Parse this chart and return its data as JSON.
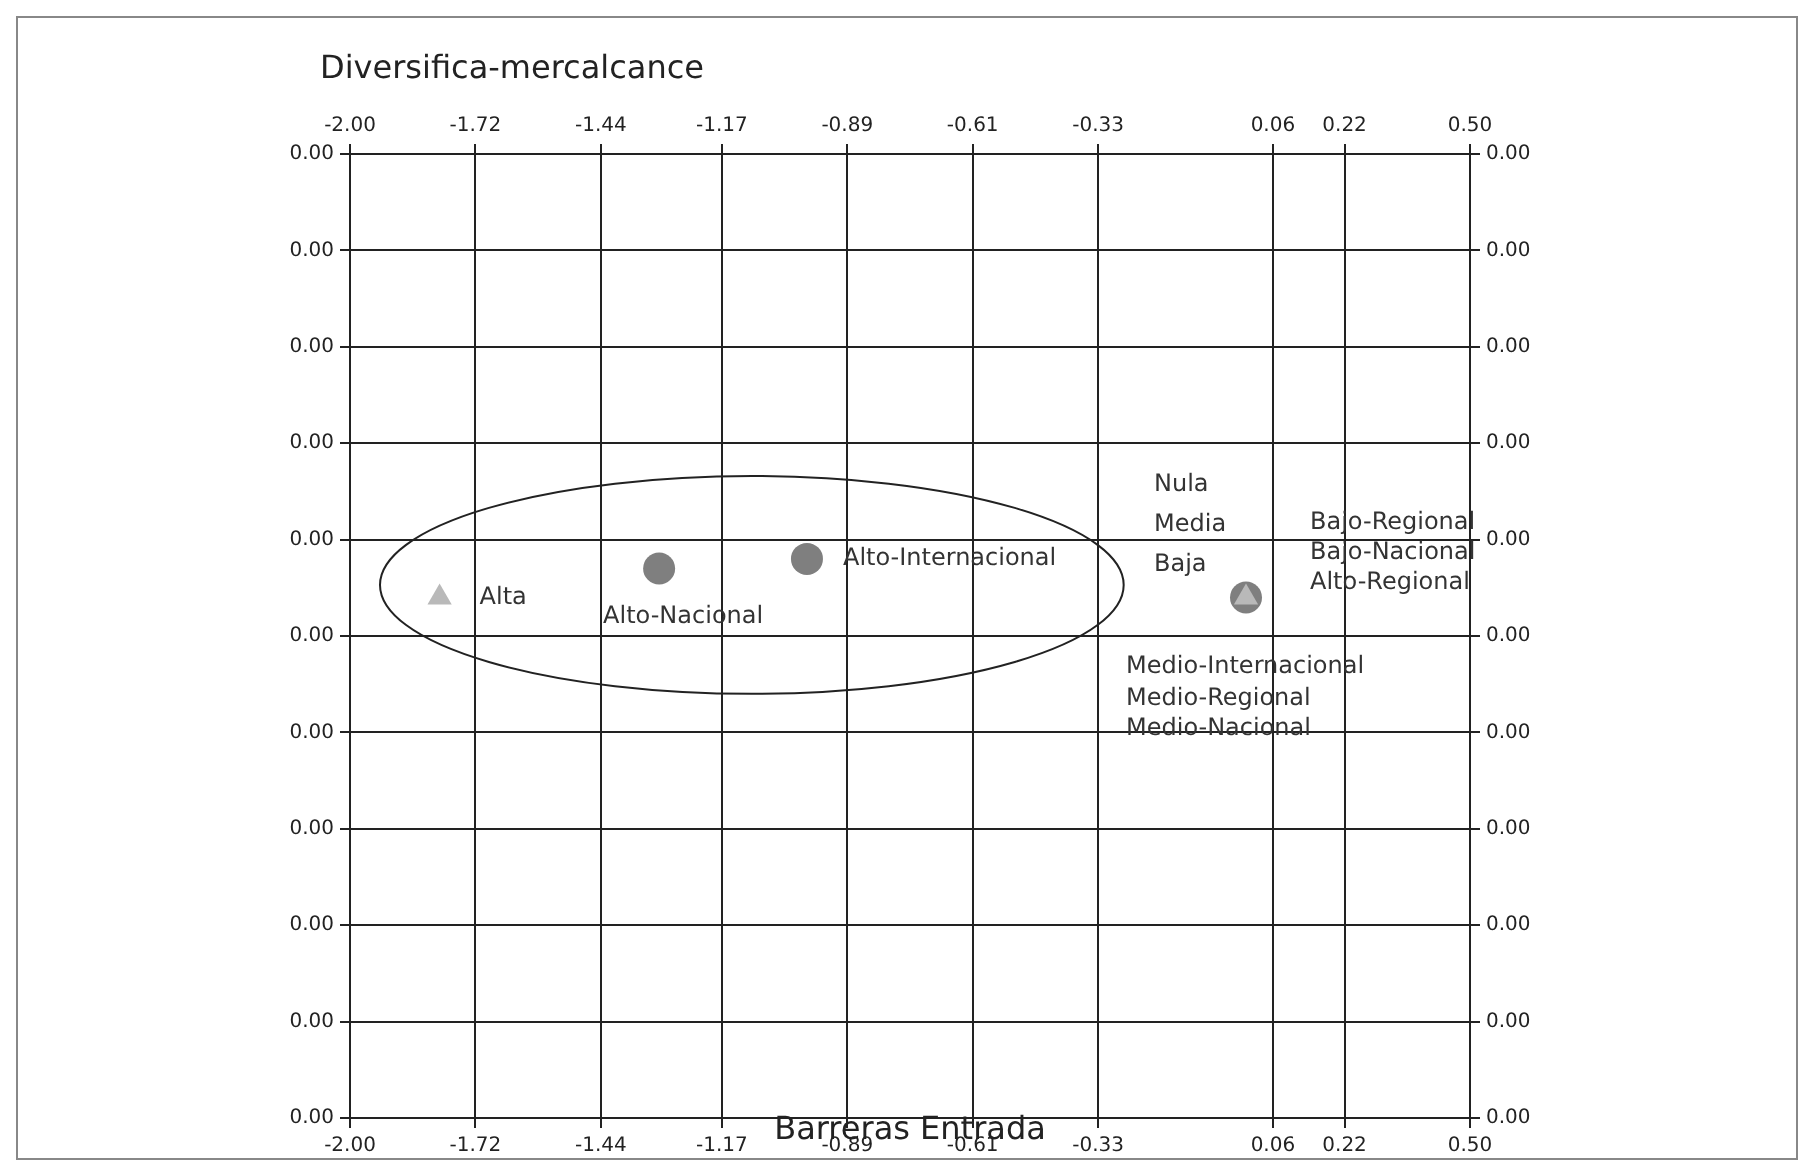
{
  "chart_data": {
    "type": "scatter",
    "xlabel": "Barreras Entrada",
    "ylabel": "Diversifica-mercalcance",
    "grid": true,
    "xlim": [
      -2,
      0.5
    ],
    "xticks": [
      {
        "value": -2,
        "label": "-2.00"
      },
      -1.72,
      -1.44,
      -1.17,
      -0.89,
      -0.61,
      -0.33,
      0.06,
      0.22,
      {
        "value": 0.5,
        "label": "0.50"
      }
    ],
    "x2lim": [
      -2,
      0.5
    ],
    "x2ticks": [
      {
        "value": -2,
        "label": "-2.00"
      },
      -1.72,
      -1.44,
      -1.17,
      -0.89,
      -0.61,
      -0.33,
      0.06,
      0.22,
      {
        "value": 0.5,
        "label": "0.50"
      }
    ],
    "ylim": [
      -0.005,
      0.005
    ],
    "yticks": [
      {
        "value": -0.005,
        "label": "0.00"
      },
      {
        "value": -0.004,
        "label": "0.00"
      },
      {
        "value": -0.003,
        "label": "0.00"
      },
      {
        "value": -0.002,
        "label": "0.00"
      },
      {
        "value": -0.001,
        "label": "0.00"
      },
      {
        "value": 0,
        "label": "0.00"
      },
      {
        "value": 0.001,
        "label": "0.00"
      },
      {
        "value": 0.002,
        "label": "0.00"
      },
      {
        "value": 0.003,
        "label": "0.00"
      },
      {
        "value": 0.004,
        "label": "0.00"
      },
      {
        "value": 0.005,
        "label": "0.00"
      }
    ],
    "y2lim": [
      -0.005,
      0.005
    ],
    "y2ticks": [
      {
        "value": -0.005,
        "label": "0.00"
      },
      {
        "value": -0.004,
        "label": "0.00"
      },
      {
        "value": -0.003,
        "label": "0.00"
      },
      {
        "value": -0.002,
        "label": "0.00"
      },
      {
        "value": -0.001,
        "label": "0.00"
      },
      {
        "value": 0,
        "label": "0.00"
      },
      {
        "value": 0.001,
        "label": "0.00"
      },
      {
        "value": 0.002,
        "label": "0.00"
      },
      {
        "value": 0.003,
        "label": "0.00"
      },
      {
        "value": 0.004,
        "label": "0.00"
      },
      {
        "value": 0.005,
        "label": "0.00"
      }
    ],
    "series": [
      {
        "color": "#b9b9b9",
        "marker": "triangle",
        "x": [
          -1.8,
          0.0
        ],
        "values": [
          0.0004,
          0.0004
        ]
      },
      {
        "color": "#7f7f7f",
        "marker": "circle",
        "x": [
          -1.31,
          -0.98,
          0.0
        ],
        "values": [
          0.0007,
          0.0008,
          0.0004
        ]
      }
    ],
    "annotations": [
      {
        "text": "Alta",
        "x": -1.8,
        "y": 0.0004
      },
      {
        "text": "Alto-Nacional",
        "x": -1.31,
        "y": 0.0007
      },
      {
        "text": "Alto-Internacional",
        "x": -0.98,
        "y": 0.0008
      },
      "Nula",
      "Media",
      "Baja",
      "Bajo-Regional",
      "Bajo-Nacional",
      "Alto-Regional",
      "Medio-Internacional",
      "Medio-Regional",
      "Medio-Nacional"
    ]
  }
}
